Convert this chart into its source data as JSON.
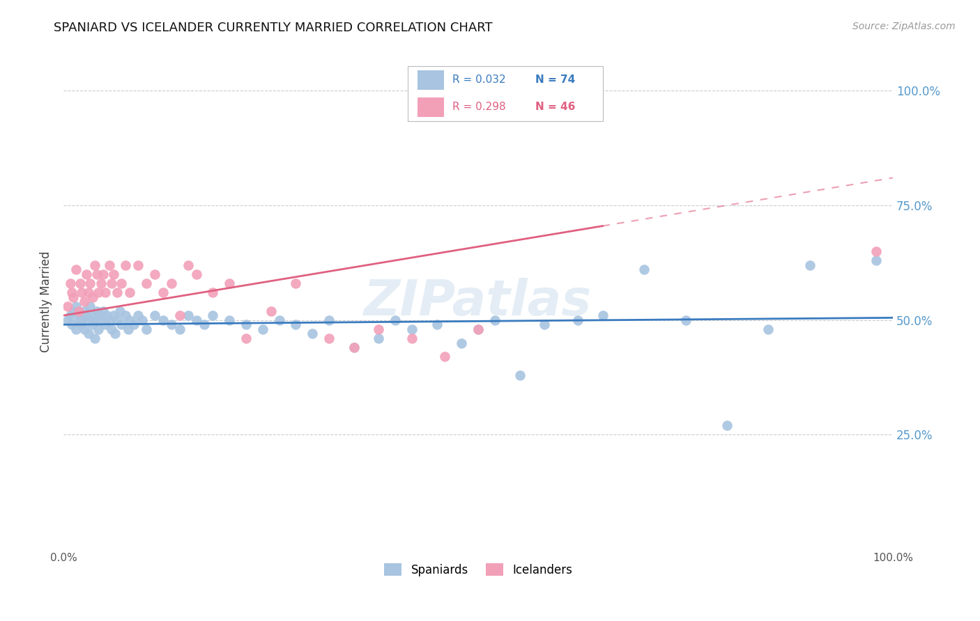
{
  "title": "SPANIARD VS ICELANDER CURRENTLY MARRIED CORRELATION CHART",
  "source": "Source: ZipAtlas.com",
  "ylabel": "Currently Married",
  "xlim": [
    0.0,
    1.0
  ],
  "ylim": [
    0.0,
    1.08
  ],
  "R_spaniards": "0.032",
  "N_spaniards": "74",
  "R_icelanders": "0.298",
  "N_icelanders": "46",
  "spaniard_color": "#a8c4e0",
  "icelander_color": "#f2a0b8",
  "spaniard_line_color": "#3a7bbf",
  "icelander_line_color": "#e06080",
  "background_color": "#ffffff",
  "grid_color": "#cccccc",
  "title_color": "#111111",
  "right_tick_color": "#5599cc",
  "watermark": "ZIPatlas",
  "spaniards_x": [
    0.005,
    0.008,
    0.01,
    0.012,
    0.015,
    0.015,
    0.018,
    0.02,
    0.022,
    0.022,
    0.025,
    0.025,
    0.028,
    0.03,
    0.03,
    0.032,
    0.035,
    0.035,
    0.038,
    0.038,
    0.04,
    0.042,
    0.042,
    0.045,
    0.048,
    0.05,
    0.052,
    0.055,
    0.058,
    0.06,
    0.062,
    0.065,
    0.068,
    0.07,
    0.075,
    0.078,
    0.08,
    0.085,
    0.09,
    0.095,
    0.1,
    0.11,
    0.12,
    0.13,
    0.14,
    0.15,
    0.16,
    0.17,
    0.18,
    0.2,
    0.22,
    0.24,
    0.26,
    0.28,
    0.3,
    0.32,
    0.35,
    0.38,
    0.4,
    0.42,
    0.45,
    0.48,
    0.5,
    0.52,
    0.55,
    0.58,
    0.62,
    0.65,
    0.7,
    0.75,
    0.8,
    0.85,
    0.9,
    0.98
  ],
  "spaniards_y": [
    0.5,
    0.51,
    0.49,
    0.52,
    0.48,
    0.53,
    0.5,
    0.51,
    0.49,
    0.5,
    0.52,
    0.48,
    0.51,
    0.5,
    0.47,
    0.53,
    0.51,
    0.49,
    0.5,
    0.46,
    0.52,
    0.51,
    0.48,
    0.5,
    0.52,
    0.49,
    0.51,
    0.5,
    0.48,
    0.51,
    0.47,
    0.5,
    0.52,
    0.49,
    0.51,
    0.48,
    0.5,
    0.49,
    0.51,
    0.5,
    0.48,
    0.51,
    0.5,
    0.49,
    0.48,
    0.51,
    0.5,
    0.49,
    0.51,
    0.5,
    0.49,
    0.48,
    0.5,
    0.49,
    0.47,
    0.5,
    0.44,
    0.46,
    0.5,
    0.48,
    0.49,
    0.45,
    0.48,
    0.5,
    0.38,
    0.49,
    0.5,
    0.51,
    0.61,
    0.5,
    0.27,
    0.48,
    0.62,
    0.63
  ],
  "icelanders_x": [
    0.005,
    0.008,
    0.01,
    0.012,
    0.015,
    0.018,
    0.02,
    0.022,
    0.025,
    0.028,
    0.03,
    0.032,
    0.035,
    0.038,
    0.04,
    0.042,
    0.045,
    0.048,
    0.05,
    0.055,
    0.058,
    0.06,
    0.065,
    0.07,
    0.075,
    0.08,
    0.09,
    0.1,
    0.11,
    0.12,
    0.13,
    0.14,
    0.15,
    0.16,
    0.18,
    0.2,
    0.22,
    0.25,
    0.28,
    0.32,
    0.35,
    0.38,
    0.42,
    0.46,
    0.5,
    0.98
  ],
  "icelanders_y": [
    0.53,
    0.58,
    0.56,
    0.55,
    0.61,
    0.52,
    0.58,
    0.56,
    0.54,
    0.6,
    0.56,
    0.58,
    0.55,
    0.62,
    0.6,
    0.56,
    0.58,
    0.6,
    0.56,
    0.62,
    0.58,
    0.6,
    0.56,
    0.58,
    0.62,
    0.56,
    0.62,
    0.58,
    0.6,
    0.56,
    0.58,
    0.51,
    0.62,
    0.6,
    0.56,
    0.58,
    0.46,
    0.52,
    0.58,
    0.46,
    0.44,
    0.48,
    0.46,
    0.42,
    0.48,
    0.65
  ]
}
